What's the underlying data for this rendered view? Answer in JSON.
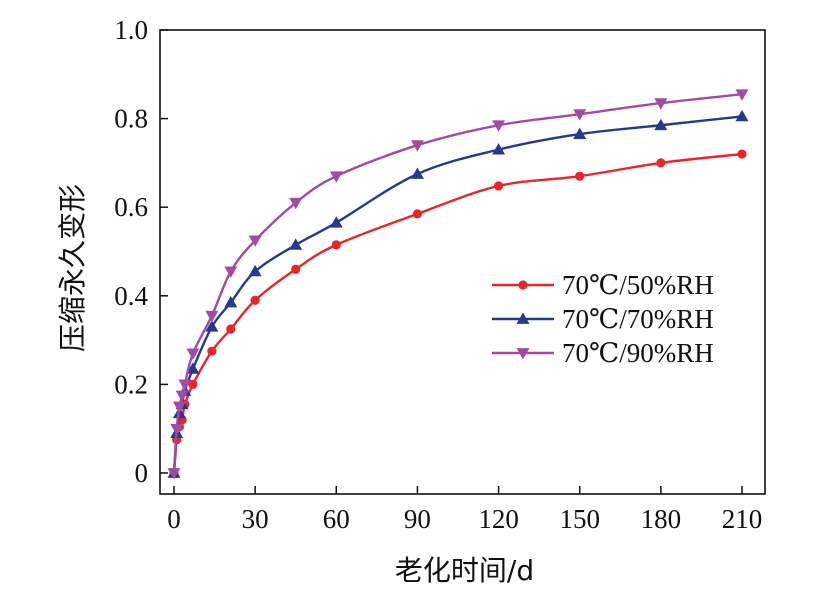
{
  "chart_data": {
    "type": "line",
    "title": "",
    "xlabel": "老化时间/d",
    "ylabel": "压缩永久变形",
    "xlim": [
      -8,
      220
    ],
    "ylim": [
      -0.05,
      1.0
    ],
    "xticks": [
      0,
      30,
      60,
      90,
      120,
      150,
      180,
      210
    ],
    "xtick_labels": [
      "0",
      "30",
      "60",
      "90",
      "120",
      "150",
      "180",
      "210"
    ],
    "yticks": [
      0,
      0.2,
      0.4,
      0.6,
      0.8,
      1.0
    ],
    "ytick_labels": [
      "0",
      "0.2",
      "0.4",
      "0.6",
      "0.8",
      "1.0"
    ],
    "grid": false,
    "legend_position": "center-right",
    "series": [
      {
        "name": "70℃/50%RH",
        "color": "#e8262a",
        "marker": "circle",
        "x": [
          0,
          1,
          2,
          3,
          4,
          7,
          14,
          21,
          30,
          45,
          60,
          90,
          120,
          150,
          180,
          210
        ],
        "y": [
          0,
          0.075,
          0.105,
          0.12,
          0.155,
          0.2,
          0.275,
          0.325,
          0.39,
          0.46,
          0.515,
          0.585,
          0.648,
          0.67,
          0.7,
          0.72
        ]
      },
      {
        "name": "70℃/70%RH",
        "color": "#27398f",
        "marker": "triangle-up",
        "x": [
          0,
          1,
          2,
          3,
          4,
          7,
          14,
          21,
          30,
          45,
          60,
          90,
          120,
          150,
          180,
          210
        ],
        "y": [
          0,
          0.09,
          0.135,
          0.155,
          0.185,
          0.235,
          0.33,
          0.385,
          0.455,
          0.515,
          0.565,
          0.675,
          0.73,
          0.765,
          0.785,
          0.805
        ]
      },
      {
        "name": "70℃/90%RH",
        "color": "#a449a4",
        "marker": "triangle-down",
        "x": [
          0,
          1,
          2,
          3,
          4,
          7,
          14,
          21,
          30,
          45,
          60,
          90,
          120,
          150,
          180,
          210
        ],
        "y": [
          0,
          0.1,
          0.15,
          0.175,
          0.2,
          0.27,
          0.355,
          0.455,
          0.525,
          0.61,
          0.67,
          0.74,
          0.785,
          0.81,
          0.835,
          0.855
        ]
      }
    ]
  }
}
